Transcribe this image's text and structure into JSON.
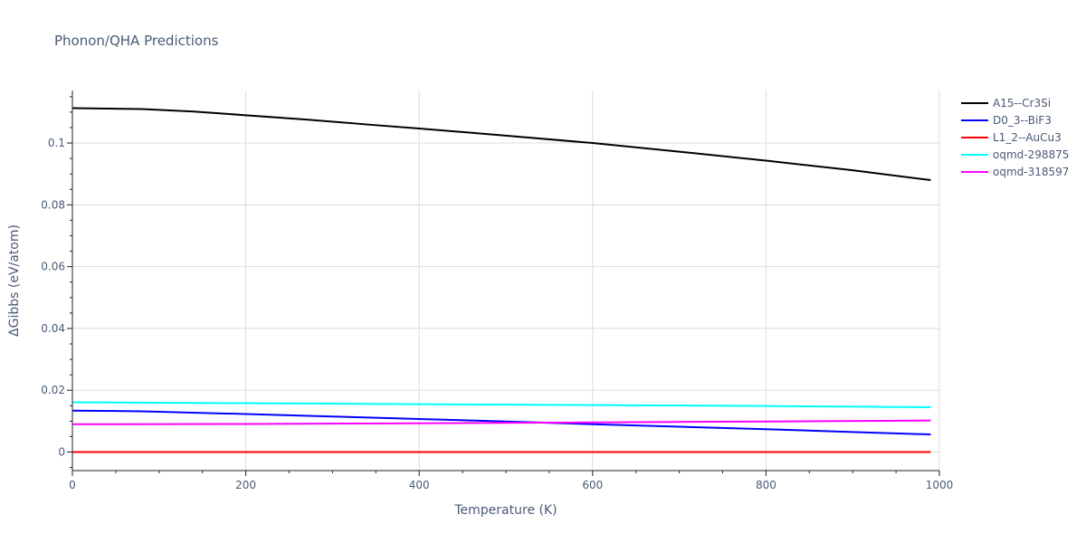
{
  "chart_data": {
    "type": "line",
    "title": "Phonon/QHA Predictions",
    "xlabel": "Temperature (K)",
    "ylabel": "ΔGibbs (eV/atom)",
    "xlim": [
      0,
      1000
    ],
    "ylim": [
      -0.006,
      0.117
    ],
    "xticks": [
      0,
      200,
      400,
      600,
      800,
      1000
    ],
    "xtick_labels": [
      "0",
      "200",
      "400",
      "600",
      "800",
      "1000"
    ],
    "yticks": [
      0,
      0.02,
      0.04,
      0.06,
      0.08,
      0.1
    ],
    "ytick_labels": [
      "0",
      "0.02",
      "0.04",
      "0.06",
      "0.08",
      "0.1"
    ],
    "grid": true,
    "legend_position": "top-right",
    "series": [
      {
        "name": "A15--Cr3Si",
        "color": "#000000",
        "x": [
          0,
          80,
          140,
          200,
          270,
          340,
          400,
          500,
          600,
          700,
          800,
          900,
          990
        ],
        "y": [
          0.1113,
          0.111,
          0.1102,
          0.109,
          0.1076,
          0.106,
          0.1047,
          0.1024,
          0.1,
          0.0972,
          0.0943,
          0.0912,
          0.088
        ]
      },
      {
        "name": "D0_3--BiF3",
        "color": "#0000ff",
        "x": [
          0,
          80,
          200,
          300,
          400,
          500,
          600,
          700,
          800,
          900,
          990
        ],
        "y": [
          0.0134,
          0.0132,
          0.0123,
          0.0115,
          0.0107,
          0.0099,
          0.009,
          0.0082,
          0.0074,
          0.0065,
          0.0057
        ]
      },
      {
        "name": "L1_2--AuCu3",
        "color": "#ff0000",
        "x": [
          0,
          990
        ],
        "y": [
          0.0,
          0.0
        ]
      },
      {
        "name": "oqmd-298875",
        "color": "#00ffff",
        "x": [
          0,
          200,
          400,
          600,
          800,
          990
        ],
        "y": [
          0.0161,
          0.0158,
          0.0155,
          0.0152,
          0.0149,
          0.0145
        ]
      },
      {
        "name": "oqmd-318597",
        "color": "#ff00ff",
        "x": [
          0,
          200,
          400,
          600,
          800,
          990
        ],
        "y": [
          0.009,
          0.0091,
          0.0093,
          0.0096,
          0.0099,
          0.0102
        ]
      }
    ]
  }
}
